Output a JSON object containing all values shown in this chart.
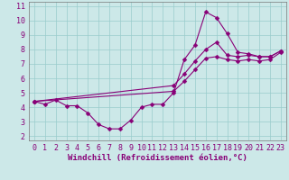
{
  "xlabel": "Windchill (Refroidissement éolien,°C)",
  "xlim": [
    -0.5,
    23.5
  ],
  "ylim": [
    1.7,
    11.3
  ],
  "xticks": [
    0,
    1,
    2,
    3,
    4,
    5,
    6,
    7,
    8,
    9,
    10,
    11,
    12,
    13,
    14,
    15,
    16,
    17,
    18,
    19,
    20,
    21,
    22,
    23
  ],
  "yticks": [
    2,
    3,
    4,
    5,
    6,
    7,
    8,
    9,
    10,
    11
  ],
  "background_color": "#cce8e8",
  "line_color": "#880077",
  "grid_color": "#99cccc",
  "lines": [
    {
      "x": [
        0,
        1,
        2,
        3,
        4,
        5,
        6,
        7,
        8,
        9,
        10,
        11,
        12,
        13,
        14,
        15,
        16,
        17,
        18,
        19,
        20,
        21,
        22,
        23
      ],
      "y": [
        4.4,
        4.2,
        4.5,
        4.1,
        4.1,
        3.6,
        2.8,
        2.5,
        2.5,
        3.1,
        4.0,
        4.2,
        4.2,
        5.0,
        7.3,
        8.3,
        10.6,
        10.2,
        9.1,
        7.8,
        7.7,
        7.5,
        7.5,
        7.9
      ]
    },
    {
      "x": [
        0,
        13,
        14,
        15,
        16,
        17,
        18,
        19,
        20,
        21,
        22,
        23
      ],
      "y": [
        4.4,
        5.5,
        6.3,
        7.2,
        8.0,
        8.5,
        7.6,
        7.5,
        7.6,
        7.5,
        7.5,
        7.9
      ]
    },
    {
      "x": [
        0,
        13,
        14,
        15,
        16,
        17,
        18,
        19,
        20,
        21,
        22,
        23
      ],
      "y": [
        4.4,
        5.1,
        5.8,
        6.6,
        7.4,
        7.5,
        7.3,
        7.2,
        7.3,
        7.2,
        7.3,
        7.8
      ]
    }
  ],
  "marker": "D",
  "marker_size": 2.5,
  "line_width": 0.8,
  "font_family": "monospace",
  "xlabel_fontsize": 6.5,
  "tick_fontsize": 6.0
}
